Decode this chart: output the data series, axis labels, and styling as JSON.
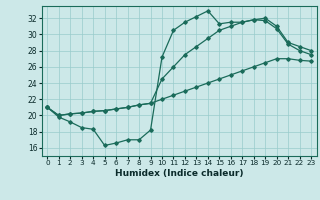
{
  "xlabel": "Humidex (Indice chaleur)",
  "bg_color": "#cce8e8",
  "line_color": "#1a6b5a",
  "grid_color": "#99cccc",
  "xlim": [
    -0.5,
    23.5
  ],
  "ylim": [
    15.0,
    33.5
  ],
  "xticks": [
    0,
    1,
    2,
    3,
    4,
    5,
    6,
    7,
    8,
    9,
    10,
    11,
    12,
    13,
    14,
    15,
    16,
    17,
    18,
    19,
    20,
    21,
    22,
    23
  ],
  "yticks": [
    16,
    18,
    20,
    22,
    24,
    26,
    28,
    30,
    32
  ],
  "line1_x": [
    0,
    1,
    2,
    3,
    4,
    5,
    6,
    7,
    8,
    9,
    10,
    11,
    12,
    13,
    14,
    15,
    16,
    17,
    18,
    19,
    20,
    21,
    22,
    23
  ],
  "line1_y": [
    21.0,
    19.8,
    19.2,
    18.5,
    18.3,
    16.3,
    16.6,
    17.0,
    17.0,
    18.2,
    27.2,
    30.5,
    31.5,
    32.2,
    32.9,
    31.3,
    31.5,
    31.5,
    31.8,
    31.7,
    30.7,
    28.8,
    28.0,
    27.5
  ],
  "line2_x": [
    0,
    1,
    2,
    3,
    4,
    5,
    6,
    7,
    8,
    9,
    10,
    11,
    12,
    13,
    14,
    15,
    16,
    17,
    18,
    19,
    20,
    21,
    22,
    23
  ],
  "line2_y": [
    21.0,
    20.0,
    20.2,
    20.3,
    20.5,
    20.6,
    20.8,
    21.0,
    21.3,
    21.5,
    22.0,
    22.5,
    23.0,
    23.5,
    24.0,
    24.5,
    25.0,
    25.5,
    26.0,
    26.5,
    27.0,
    27.0,
    26.8,
    26.7
  ],
  "line3_x": [
    0,
    1,
    2,
    3,
    4,
    5,
    6,
    7,
    8,
    9,
    10,
    11,
    12,
    13,
    14,
    15,
    16,
    17,
    18,
    19,
    20,
    21,
    22,
    23
  ],
  "line3_y": [
    21.0,
    20.0,
    20.2,
    20.3,
    20.5,
    20.6,
    20.8,
    21.0,
    21.3,
    21.5,
    24.5,
    26.0,
    27.5,
    28.5,
    29.5,
    30.5,
    31.0,
    31.5,
    31.8,
    32.0,
    31.0,
    29.0,
    28.5,
    28.0
  ]
}
